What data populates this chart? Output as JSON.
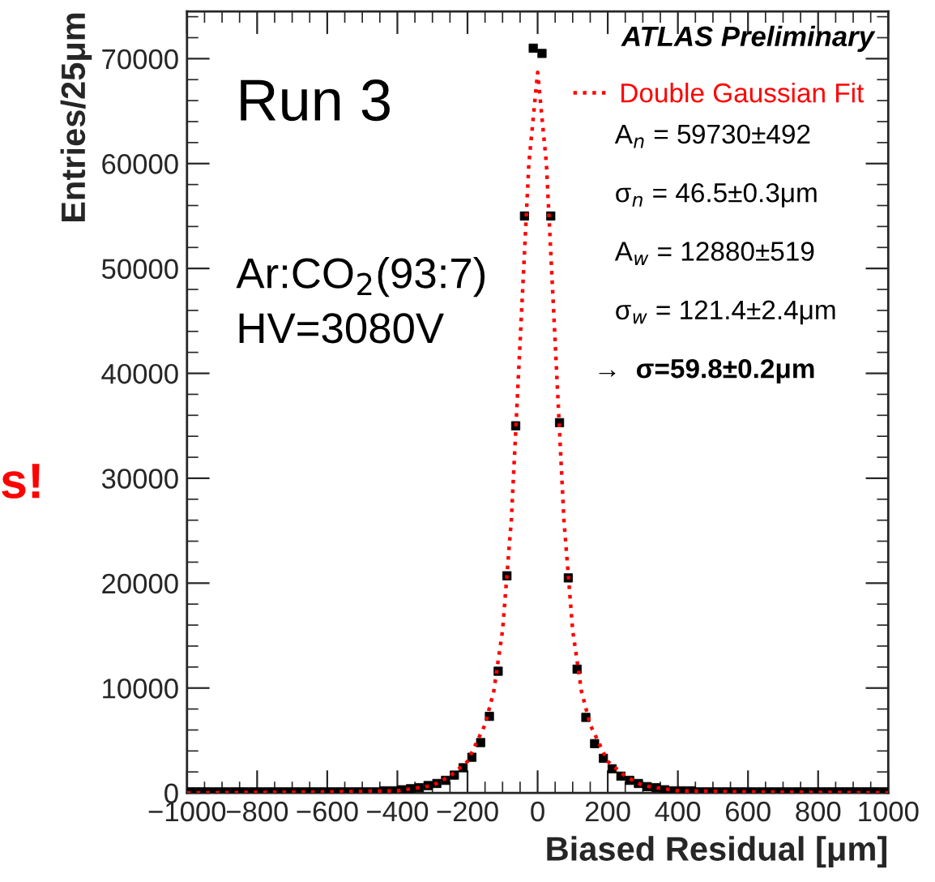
{
  "chart_data": {
    "type": "scatter",
    "xlabel": "Biased Residual [μm]",
    "ylabel": "Entries/25μm",
    "xlim": [
      -1000,
      1000
    ],
    "ylim": [
      0,
      74500
    ],
    "xticks": [
      {
        "value": -1000,
        "label": "−1000"
      },
      {
        "value": -800,
        "label": "−800"
      },
      {
        "value": -600,
        "label": "−600"
      },
      {
        "value": -400,
        "label": "−400"
      },
      {
        "value": -200,
        "label": "−200"
      },
      0,
      200,
      400,
      600,
      800,
      1000
    ],
    "yticks": [
      0,
      10000,
      20000,
      30000,
      40000,
      50000,
      60000,
      70000
    ],
    "grid": false,
    "legend": "top right",
    "series": [
      {
        "color": "#000000",
        "marker": "square",
        "x": [
          -987.5,
          -962.5,
          -937.5,
          -912.5,
          -887.5,
          -862.5,
          -837.5,
          -812.5,
          -787.5,
          -762.5,
          -737.5,
          -712.5,
          -687.5,
          -662.5,
          -637.5,
          -612.5,
          -587.5,
          -562.5,
          -537.5,
          -512.5,
          -487.5,
          -462.5,
          -437.5,
          -412.5,
          -387.5,
          -362.5,
          -337.5,
          -312.5,
          -287.5,
          -262.5,
          -237.5,
          -212.5,
          -187.5,
          -162.5,
          -137.5,
          -112.5,
          -87.5,
          -62.5,
          -37.5,
          -12.5,
          12.5,
          37.5,
          62.5,
          87.5,
          112.5,
          137.5,
          162.5,
          187.5,
          212.5,
          237.5,
          262.5,
          287.5,
          312.5,
          337.5,
          362.5,
          387.5,
          412.5,
          437.5,
          462.5,
          487.5,
          512.5,
          537.5,
          562.5,
          587.5,
          612.5,
          637.5,
          662.5,
          687.5,
          712.5,
          737.5,
          762.5,
          787.5,
          812.5,
          837.5,
          862.5,
          887.5,
          912.5,
          937.5,
          962.5,
          987.5
        ],
        "values": [
          100,
          100,
          100,
          100,
          100,
          100,
          100,
          100,
          100,
          100,
          100,
          100,
          100,
          100,
          100,
          100,
          100,
          100,
          100,
          100,
          100,
          100,
          200,
          200,
          300,
          400,
          500,
          700,
          900,
          1200,
          1700,
          2400,
          3400,
          4800,
          7300,
          11600,
          20700,
          35000,
          55000,
          71000,
          70500,
          55000,
          35300,
          20500,
          11800,
          7200,
          4700,
          3300,
          2300,
          1600,
          1200,
          900,
          600,
          500,
          300,
          200,
          200,
          200,
          100,
          100,
          100,
          100,
          100,
          100,
          100,
          100,
          100,
          100,
          100,
          100,
          100,
          100,
          100,
          100,
          100,
          100,
          100,
          100,
          100,
          100
        ]
      },
      {
        "type": "line",
        "name": "Double Gaussian Fit",
        "color": "#ff0000",
        "marker": "none",
        "line_style": "dotted",
        "x": [
          -1000,
          -600,
          -400,
          -300,
          -250,
          -200,
          -150,
          -125,
          -100,
          -75,
          -50,
          -25,
          0,
          25,
          50,
          75,
          100,
          125,
          150,
          200,
          250,
          300,
          400,
          600,
          1000
        ],
        "values": [
          0,
          100,
          200,
          700,
          1600,
          3000,
          6500,
          9700,
          15500,
          26000,
          43000,
          60000,
          68700,
          60000,
          43000,
          26000,
          15500,
          9700,
          6500,
          3000,
          1600,
          700,
          200,
          100,
          0
        ]
      }
    ],
    "annotations": [
      "Run 3",
      "Ar:CO$_{2}$(93:7)",
      "HV=3080V",
      "ATLAS Preliminary",
      "A$_{n}$ = 59730±492",
      "σ$_{n}$ = 46.5±0.3μm",
      "A$_{w}$ = 12880±519",
      "σ$_{w}$ = 121.4±2.4μm",
      "→  σ=59.8±0.2μm",
      "s!"
    ]
  }
}
